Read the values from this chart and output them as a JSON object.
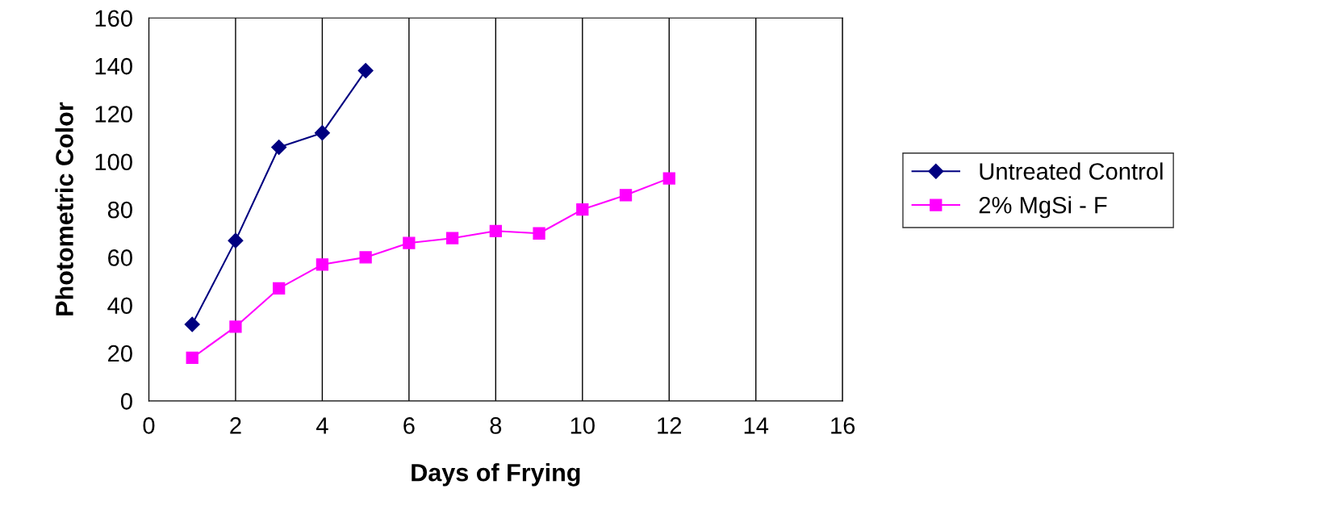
{
  "chart_data": {
    "type": "line",
    "xlabel": "Days of Frying",
    "ylabel": "Photometric Color",
    "xlim": [
      0,
      16
    ],
    "xticks": [
      0,
      2,
      4,
      6,
      8,
      10,
      12,
      14,
      16
    ],
    "ylim": [
      0,
      160
    ],
    "yticks": [
      0,
      20,
      40,
      60,
      80,
      100,
      120,
      140,
      160
    ],
    "grid": "x",
    "legend": "right",
    "line_style": "solid",
    "series": [
      {
        "name": "Untreated Control",
        "color": "#000080",
        "marker": "diamond",
        "x": [
          1,
          2,
          3,
          4,
          5
        ],
        "values": [
          32,
          67,
          106,
          112,
          138
        ]
      },
      {
        "name": "2% MgSi - F",
        "color": "#ff00ff",
        "marker": "square",
        "x": [
          1,
          2,
          3,
          4,
          5,
          6,
          7,
          8,
          9,
          10,
          11,
          12
        ],
        "values": [
          18,
          31,
          47,
          57,
          60,
          66,
          68,
          71,
          70,
          80,
          86,
          93
        ]
      }
    ]
  }
}
